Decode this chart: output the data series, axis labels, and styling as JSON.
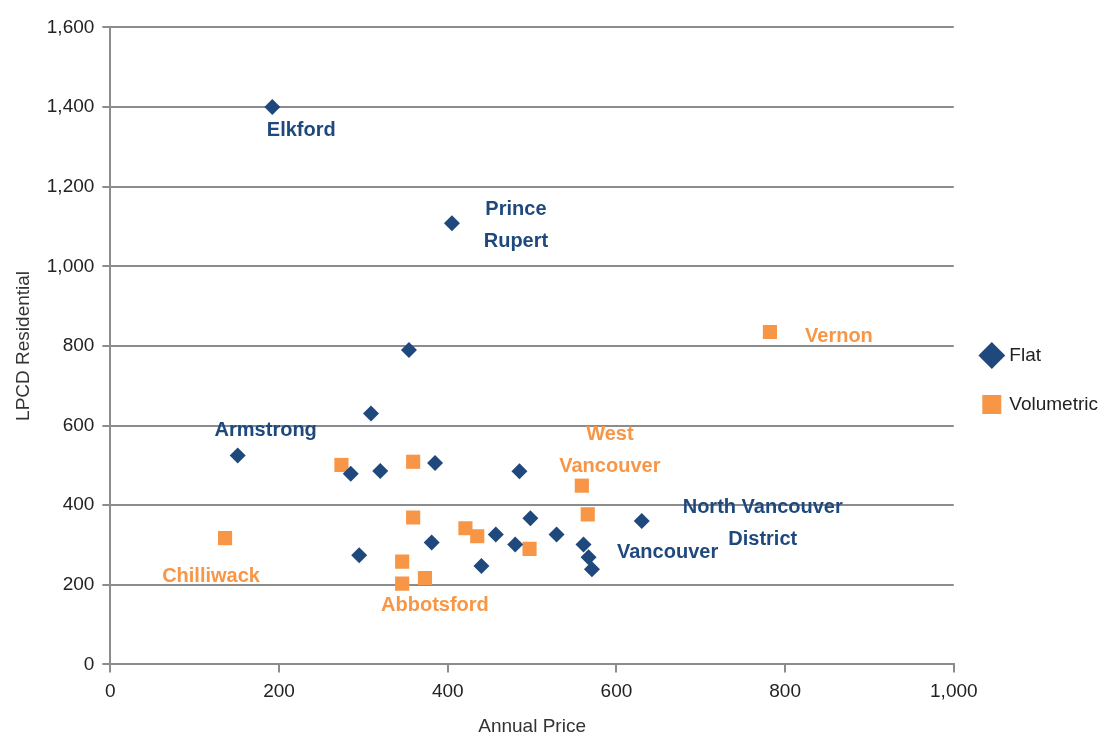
{
  "chart_data": {
    "type": "scatter",
    "xlabel": "Annual Price",
    "ylabel": "LPCD Residential",
    "xlim": [
      0,
      1000
    ],
    "xticks": [
      0,
      {
        "value": 200,
        "label": "200"
      },
      {
        "value": 400,
        "label": "400"
      },
      {
        "value": 600,
        "label": "600"
      },
      {
        "value": 800,
        "label": "800"
      },
      {
        "value": 1000,
        "label": "1,000"
      }
    ],
    "ylim": [
      0,
      1600
    ],
    "yticks": [
      0,
      200,
      400,
      600,
      800,
      {
        "value": 1000,
        "label": "1,000"
      },
      {
        "value": 1200,
        "label": "1,200"
      },
      {
        "value": 1400,
        "label": "1,400"
      },
      {
        "value": 1600,
        "label": "1,600"
      }
    ],
    "grid": "y",
    "legend": "right",
    "series": [
      {
        "name": "Flat",
        "color": "#1f497d",
        "marker": "diamond",
        "x": [
          192,
          405,
          354,
          309,
          151,
          285,
          320,
          385,
          485,
          498,
          630,
          457,
          529,
          381,
          480,
          561,
          295,
          567,
          571,
          440
        ],
        "values": [
          1400,
          1108,
          790,
          630,
          525,
          479,
          486,
          506,
          485,
          367,
          360,
          326,
          326,
          306,
          301,
          301,
          274,
          269,
          239,
          247
        ]
      },
      {
        "name": "Volumetric",
        "color": "#f79646",
        "marker": "square",
        "x": [
          782,
          274,
          359,
          559,
          359,
          566,
          136,
          421,
          435,
          497,
          346,
          346,
          373
        ],
        "values": [
          835,
          501,
          509,
          449,
          369,
          377,
          317,
          342,
          322,
          290,
          258,
          203,
          217
        ]
      }
    ],
    "annotations": [
      {
        "text": "Elkford",
        "x": 192,
        "y": 1400
      },
      {
        "text": "Prince\nRupert",
        "x": 405,
        "y": 1108
      },
      {
        "text": "Vernon",
        "x": 782,
        "y": 835
      },
      {
        "text": "Armstrong",
        "x": 151,
        "y": 525
      },
      {
        "text": "West\nVancouver",
        "x": 559,
        "y": 449
      },
      {
        "text": "North Vancouver\nDistrict",
        "x": 630,
        "y": 360
      },
      {
        "text": "Vancouver",
        "x": 567,
        "y": 269
      },
      {
        "text": "Chilliwack",
        "x": 136,
        "y": 317
      },
      {
        "text": "Abbotsford",
        "x": 373,
        "y": 217
      }
    ]
  }
}
